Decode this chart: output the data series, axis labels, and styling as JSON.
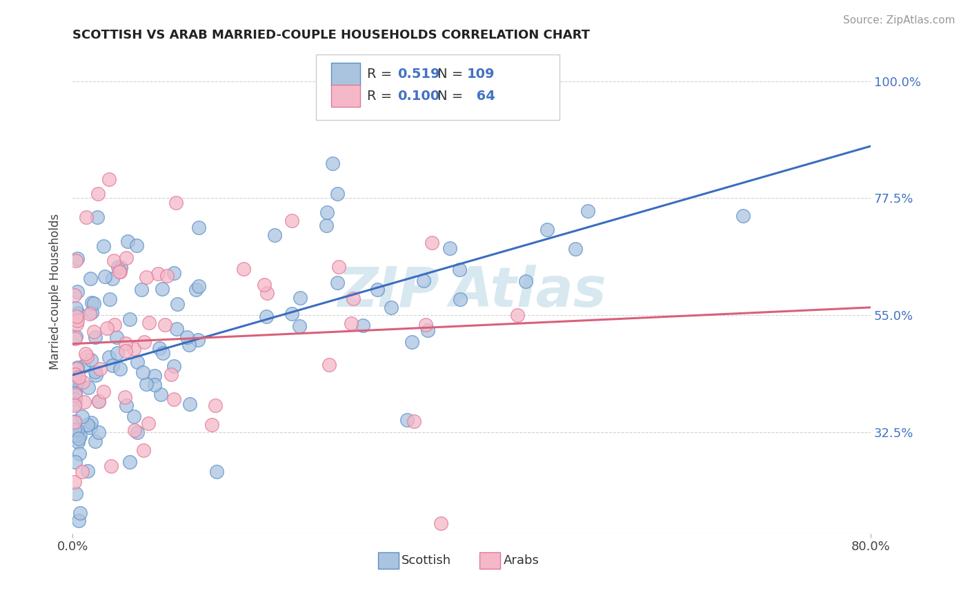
{
  "title": "SCOTTISH VS ARAB MARRIED-COUPLE HOUSEHOLDS CORRELATION CHART",
  "source": "Source: ZipAtlas.com",
  "ylabel": "Married-couple Households",
  "yticks": [
    "32.5%",
    "55.0%",
    "77.5%",
    "100.0%"
  ],
  "ytick_vals": [
    0.325,
    0.55,
    0.775,
    1.0
  ],
  "xlim": [
    0.0,
    0.8
  ],
  "ylim": [
    0.13,
    1.06
  ],
  "legend_scottish_R": "0.519",
  "legend_scottish_N": "109",
  "legend_arab_R": "0.100",
  "legend_arab_N": "64",
  "scottish_color": "#aac4df",
  "scottish_edge_color": "#5b8fc9",
  "scottish_line_color": "#3b6dbf",
  "arab_color": "#f5b8c8",
  "arab_edge_color": "#e07898",
  "arab_line_color": "#d9607a",
  "scottish_line_x0": 0.0,
  "scottish_line_y0": 0.435,
  "scottish_line_x1": 0.8,
  "scottish_line_y1": 0.875,
  "arab_line_x0": 0.0,
  "arab_line_y0": 0.495,
  "arab_line_x1": 0.8,
  "arab_line_y1": 0.565,
  "background_color": "#ffffff",
  "grid_color": "#cccccc",
  "watermark_color": "#d8e8f0",
  "title_fontsize": 13,
  "source_fontsize": 11,
  "tick_fontsize": 13,
  "ylabel_fontsize": 12
}
